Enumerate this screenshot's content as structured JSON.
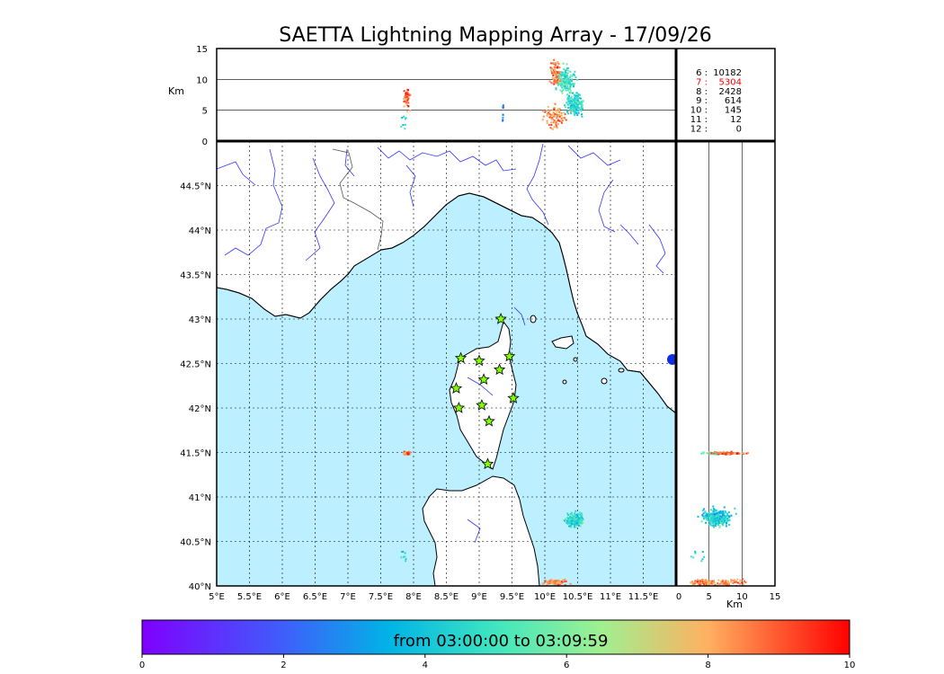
{
  "title": "SAETTA Lightning Mapping Array - 17/09/26",
  "time_range_label": "from 03:00:00 to 03:09:59",
  "units": {
    "km_top": "Km",
    "km_right": "Km"
  },
  "colors": {
    "sea": "#bcefff",
    "land": "#ffffff",
    "river": "#3333ff",
    "border": "#555555",
    "coast": "#000000",
    "station": "#7fff00"
  },
  "map": {
    "lon_ticks": [
      "5°E",
      "5.5°E",
      "6°E",
      "6.5°E",
      "7°E",
      "7.5°E",
      "8°E",
      "8.5°E",
      "9°E",
      "9.5°E",
      "10°E",
      "10.5°E",
      "11°E",
      "11.5°E"
    ],
    "lat_ticks": [
      "44.5°N",
      "44°N",
      "43.5°N",
      "43°N",
      "42.5°N",
      "42°N",
      "41.5°N",
      "41°N",
      "40.5°N",
      "40°N"
    ],
    "lon_range": [
      5,
      12
    ],
    "lat_range": [
      40,
      45
    ]
  },
  "top_panel": {
    "alt_ticks": [
      "0",
      "5",
      "10",
      "15"
    ],
    "alt_range": [
      0,
      15
    ]
  },
  "right_panel": {
    "alt_ticks": [
      "0",
      "5",
      "10",
      "15"
    ],
    "alt_range": [
      0,
      15
    ]
  },
  "station_counts": [
    {
      "label": "6 :",
      "value": "10182",
      "color": "#000000"
    },
    {
      "label": "7 :",
      "value": "5304",
      "color": "#ff0000"
    },
    {
      "label": "8 :",
      "value": "2428",
      "color": "#000000"
    },
    {
      "label": "9 :",
      "value": "614",
      "color": "#000000"
    },
    {
      "label": "10 :",
      "value": "145",
      "color": "#000000"
    },
    {
      "label": "11 :",
      "value": "12",
      "color": "#000000"
    },
    {
      "label": "12 :",
      "value": "0",
      "color": "#000000"
    }
  ],
  "colorbar": {
    "ticks": [
      "0",
      "2",
      "4",
      "6",
      "8",
      "10"
    ],
    "range": [
      0,
      10
    ]
  },
  "stations": [
    {
      "lon": 9.33,
      "lat": 43.0
    },
    {
      "lon": 8.72,
      "lat": 42.56
    },
    {
      "lon": 9.0,
      "lat": 42.53
    },
    {
      "lon": 9.46,
      "lat": 42.58
    },
    {
      "lon": 9.31,
      "lat": 42.43
    },
    {
      "lon": 9.07,
      "lat": 42.32
    },
    {
      "lon": 8.65,
      "lat": 42.22
    },
    {
      "lon": 9.52,
      "lat": 42.11
    },
    {
      "lon": 8.69,
      "lat": 42.0
    },
    {
      "lon": 9.04,
      "lat": 42.03
    },
    {
      "lon": 9.15,
      "lat": 41.85
    },
    {
      "lon": 9.13,
      "lat": 41.37
    }
  ],
  "clusters": [
    {
      "lon": 7.88,
      "lat": 41.5,
      "alt": 7,
      "t": 8.8,
      "dlon": 0.07,
      "dlat": 0.03,
      "n": 40
    },
    {
      "lon": 10.45,
      "lat": 40.75,
      "alt": 6,
      "t": 4.5,
      "dlon": 0.2,
      "dlat": 0.12,
      "n": 160
    },
    {
      "lon": 10.15,
      "lat": 40.05,
      "alt": 4,
      "t": 8.5,
      "dlon": 0.25,
      "dlat": 0.04,
      "n": 90
    },
    {
      "lon": 7.85,
      "lat": 40.35,
      "alt": 3,
      "t": 4.3,
      "dlon": 0.08,
      "dlat": 0.1,
      "n": 8
    }
  ]
}
